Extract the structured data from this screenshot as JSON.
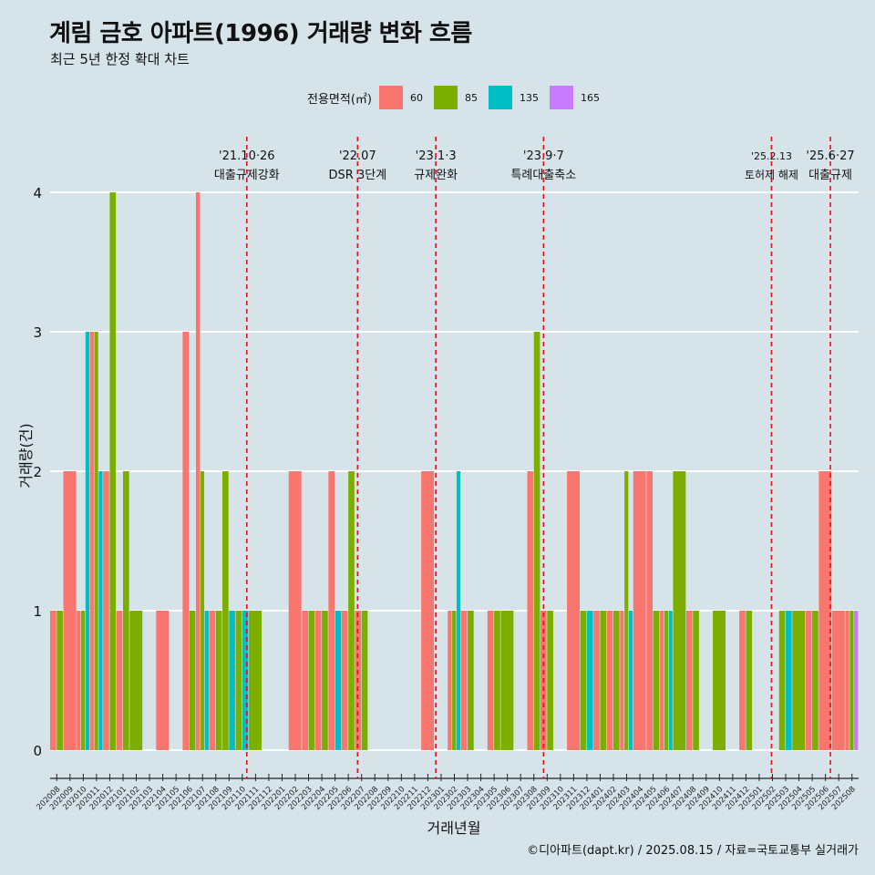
{
  "header": {
    "title": "계림 금호 아파트(1996) 거래량 변화 흐름",
    "subtitle": "최근 5년 한정 확대 차트"
  },
  "legend": {
    "title": "전용면적(㎡)",
    "items": [
      {
        "label": "60",
        "color": "#F8766D"
      },
      {
        "label": "85",
        "color": "#7CAE00"
      },
      {
        "label": "135",
        "color": "#00BFC4"
      },
      {
        "label": "165",
        "color": "#C77CFF"
      }
    ]
  },
  "caption": "©디아파트(dapt.kr) / 2025.08.15 / 자료=국토교통부 실거래가",
  "chart_data": {
    "type": "bar",
    "xlabel": "거래년월",
    "ylabel": "거래량(건)",
    "ylim": [
      0,
      4
    ],
    "y_ticks": [
      0,
      1,
      2,
      3,
      4
    ],
    "grid": true,
    "legend_position": "top",
    "categories": [
      "202008",
      "202009",
      "202010",
      "202011",
      "202012",
      "202101",
      "202102",
      "202103",
      "202104",
      "202105",
      "202106",
      "202107",
      "202108",
      "202109",
      "202110",
      "202111",
      "202112",
      "202201",
      "202202",
      "202203",
      "202204",
      "202205",
      "202206",
      "202207",
      "202208",
      "202209",
      "202210",
      "202211",
      "202212",
      "202301",
      "202302",
      "202303",
      "202304",
      "202305",
      "202306",
      "202307",
      "202308",
      "202309",
      "202310",
      "202311",
      "202312",
      "202401",
      "202402",
      "202403",
      "202404",
      "202405",
      "202406",
      "202407",
      "202408",
      "202409",
      "202410",
      "202411",
      "202412",
      "202501",
      "202502",
      "202503",
      "202504",
      "202505",
      "202506",
      "202507",
      "202508"
    ],
    "series": [
      {
        "name": "60",
        "values": [
          1,
          2,
          1,
          3,
          2,
          1,
          0,
          0,
          1,
          0,
          3,
          4,
          1,
          0,
          0,
          0,
          0,
          0,
          2,
          1,
          1,
          2,
          1,
          1,
          0,
          0,
          0,
          0,
          2,
          0,
          1,
          1,
          0,
          1,
          0,
          0,
          2,
          1,
          0,
          2,
          0,
          1,
          1,
          1,
          2,
          2,
          1,
          0,
          1,
          0,
          0,
          0,
          1,
          0,
          0,
          0,
          0,
          1,
          2,
          1,
          1
        ]
      },
      {
        "name": "85",
        "values": [
          1,
          0,
          1,
          3,
          4,
          2,
          1,
          0,
          0,
          0,
          1,
          2,
          1,
          2,
          1,
          1,
          0,
          0,
          0,
          1,
          1,
          0,
          2,
          1,
          0,
          0,
          0,
          0,
          0,
          0,
          1,
          1,
          0,
          1,
          1,
          0,
          3,
          1,
          0,
          0,
          1,
          1,
          1,
          2,
          0,
          1,
          1,
          2,
          1,
          0,
          1,
          0,
          1,
          0,
          0,
          1,
          1,
          1,
          0,
          0,
          1
        ]
      },
      {
        "name": "135",
        "values": [
          0,
          0,
          3,
          2,
          0,
          0,
          0,
          0,
          0,
          0,
          0,
          1,
          0,
          1,
          1,
          0,
          0,
          0,
          0,
          0,
          0,
          1,
          0,
          0,
          0,
          0,
          0,
          0,
          0,
          0,
          2,
          0,
          0,
          0,
          0,
          0,
          0,
          0,
          0,
          0,
          1,
          0,
          0,
          1,
          0,
          0,
          1,
          0,
          0,
          0,
          0,
          0,
          0,
          0,
          0,
          1,
          0,
          0,
          0,
          0,
          0
        ]
      },
      {
        "name": "165",
        "values": [
          0,
          0,
          0,
          0,
          0,
          0,
          0,
          0,
          0,
          0,
          0,
          0,
          0,
          0,
          0,
          0,
          0,
          0,
          0,
          0,
          0,
          0,
          0,
          0,
          0,
          0,
          0,
          0,
          0,
          0,
          0,
          0,
          0,
          0,
          0,
          0,
          0,
          0,
          0,
          0,
          0,
          0,
          0,
          0,
          0,
          0,
          0,
          0,
          0,
          0,
          0,
          0,
          0,
          0,
          0,
          0,
          0,
          0,
          0,
          0,
          1
        ]
      }
    ],
    "annotations": [
      {
        "at": "202110",
        "offset": 0.84,
        "line1": "'21.10·26",
        "line2": "대출규제강화"
      },
      {
        "at": "202207",
        "offset": 0.2,
        "line1": "'22.07",
        "line2": "DSR 3단계"
      },
      {
        "at": "202301",
        "offset": 0.1,
        "line1": "'23.1·3",
        "line2": "규제완화"
      },
      {
        "at": "202309",
        "offset": 0.23,
        "line1": "'23.9·7",
        "line2": "특례대출축소"
      },
      {
        "at": "202502",
        "offset": 0.43,
        "line1": "'25.2.13",
        "line2": "토허제 해제"
      },
      {
        "at": "202506",
        "offset": 0.87,
        "line1": "'25.6·27",
        "line2": "대출규제"
      }
    ]
  }
}
